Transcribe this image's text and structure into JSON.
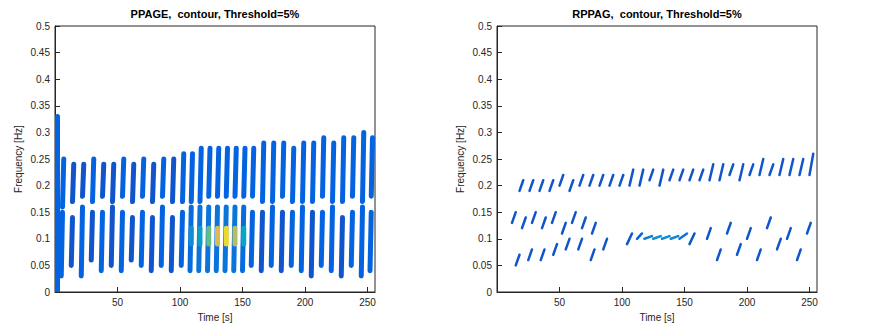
{
  "chart_data": [
    {
      "type": "contour",
      "title": "PPAGE,  contour, Threshold=5%",
      "x_label": "Time [s]",
      "y_label": "Frequency [Hz]",
      "xlim": [
        0,
        256
      ],
      "xticks": [
        50,
        100,
        150,
        200,
        250
      ],
      "ylim": [
        0,
        0.5
      ],
      "yticks": [
        0,
        0.05,
        0.1,
        0.15,
        0.2,
        0.25,
        0.3,
        0.35,
        0.4,
        0.45,
        0.5
      ],
      "zlim": [
        0,
        1
      ],
      "segments": [
        [
          2,
          0.0,
          2,
          0.33,
          0.2
        ],
        [
          6,
          0.16,
          7,
          0.25,
          0.2
        ],
        [
          14,
          0.17,
          15,
          0.24,
          0.15
        ],
        [
          22,
          0.18,
          23,
          0.24,
          0.15
        ],
        [
          30,
          0.17,
          31,
          0.25,
          0.2
        ],
        [
          38,
          0.18,
          39,
          0.24,
          0.15
        ],
        [
          46,
          0.17,
          47,
          0.24,
          0.15
        ],
        [
          54,
          0.18,
          55,
          0.25,
          0.2
        ],
        [
          62,
          0.17,
          63,
          0.24,
          0.15
        ],
        [
          70,
          0.18,
          71,
          0.25,
          0.2
        ],
        [
          78,
          0.17,
          79,
          0.24,
          0.15
        ],
        [
          86,
          0.18,
          87,
          0.25,
          0.2
        ],
        [
          94,
          0.17,
          95,
          0.25,
          0.15
        ],
        [
          102,
          0.17,
          103,
          0.26,
          0.2
        ],
        [
          109,
          0.17,
          110,
          0.26,
          0.2
        ],
        [
          116,
          0.17,
          117,
          0.27,
          0.2
        ],
        [
          123,
          0.18,
          124,
          0.27,
          0.2
        ],
        [
          130,
          0.18,
          131,
          0.27,
          0.2
        ],
        [
          137,
          0.18,
          138,
          0.27,
          0.2
        ],
        [
          144,
          0.18,
          145,
          0.27,
          0.2
        ],
        [
          151,
          0.18,
          152,
          0.27,
          0.2
        ],
        [
          158,
          0.18,
          159,
          0.27,
          0.2
        ],
        [
          166,
          0.17,
          167,
          0.28,
          0.2
        ],
        [
          174,
          0.17,
          175,
          0.28,
          0.2
        ],
        [
          182,
          0.18,
          183,
          0.28,
          0.2
        ],
        [
          190,
          0.17,
          191,
          0.27,
          0.2
        ],
        [
          198,
          0.17,
          199,
          0.28,
          0.2
        ],
        [
          206,
          0.17,
          207,
          0.28,
          0.2
        ],
        [
          214,
          0.18,
          215,
          0.29,
          0.2
        ],
        [
          222,
          0.17,
          223,
          0.28,
          0.2
        ],
        [
          230,
          0.17,
          231,
          0.29,
          0.2
        ],
        [
          238,
          0.18,
          239,
          0.29,
          0.2
        ],
        [
          246,
          0.17,
          247,
          0.3,
          0.2
        ],
        [
          253,
          0.18,
          254,
          0.29,
          0.2
        ],
        [
          5,
          0.03,
          6,
          0.15,
          0.2
        ],
        [
          13,
          0.05,
          14,
          0.14,
          0.15
        ],
        [
          21,
          0.03,
          22,
          0.16,
          0.2
        ],
        [
          29,
          0.06,
          30,
          0.15,
          0.15
        ],
        [
          37,
          0.04,
          38,
          0.15,
          0.2
        ],
        [
          45,
          0.05,
          46,
          0.16,
          0.15
        ],
        [
          53,
          0.04,
          54,
          0.15,
          0.2
        ],
        [
          61,
          0.06,
          62,
          0.14,
          0.15
        ],
        [
          69,
          0.05,
          70,
          0.15,
          0.2
        ],
        [
          77,
          0.04,
          78,
          0.14,
          0.15
        ],
        [
          85,
          0.05,
          86,
          0.16,
          0.2
        ],
        [
          93,
          0.04,
          94,
          0.14,
          0.15
        ],
        [
          101,
          0.05,
          102,
          0.15,
          0.2
        ],
        [
          108,
          0.04,
          109,
          0.16,
          0.25
        ],
        [
          115,
          0.04,
          116,
          0.16,
          0.3
        ],
        [
          122,
          0.04,
          123,
          0.16,
          0.3
        ],
        [
          129,
          0.04,
          130,
          0.16,
          0.3
        ],
        [
          136,
          0.04,
          137,
          0.16,
          0.3
        ],
        [
          143,
          0.04,
          144,
          0.16,
          0.3
        ],
        [
          150,
          0.04,
          151,
          0.16,
          0.25
        ],
        [
          157,
          0.05,
          158,
          0.15,
          0.2
        ],
        [
          165,
          0.04,
          166,
          0.15,
          0.15
        ],
        [
          173,
          0.05,
          174,
          0.16,
          0.2
        ],
        [
          181,
          0.04,
          182,
          0.15,
          0.15
        ],
        [
          189,
          0.05,
          190,
          0.15,
          0.2
        ],
        [
          197,
          0.04,
          198,
          0.16,
          0.2
        ],
        [
          205,
          0.03,
          206,
          0.15,
          0.15
        ],
        [
          213,
          0.05,
          214,
          0.15,
          0.2
        ],
        [
          221,
          0.04,
          222,
          0.16,
          0.2
        ],
        [
          229,
          0.03,
          230,
          0.14,
          0.15
        ],
        [
          237,
          0.05,
          238,
          0.15,
          0.2
        ],
        [
          245,
          0.03,
          246,
          0.16,
          0.2
        ],
        [
          252,
          0.04,
          253,
          0.15,
          0.2
        ],
        [
          109,
          0.09,
          109,
          0.12,
          0.45
        ],
        [
          116,
          0.09,
          116,
          0.12,
          0.55
        ],
        [
          123,
          0.09,
          123,
          0.12,
          0.75
        ],
        [
          130,
          0.09,
          130,
          0.12,
          0.9
        ],
        [
          137,
          0.09,
          137,
          0.12,
          0.95
        ],
        [
          144,
          0.09,
          144,
          0.12,
          0.85
        ],
        [
          151,
          0.09,
          151,
          0.12,
          0.6
        ]
      ]
    },
    {
      "type": "contour",
      "title": "RPPAG,  contour, Threshold=5%",
      "x_label": "Time [s]",
      "y_label": "Frequency [Hz]",
      "xlim": [
        0,
        256
      ],
      "xticks": [
        50,
        100,
        150,
        200,
        250
      ],
      "ylim": [
        0,
        0.5
      ],
      "yticks": [
        0,
        0.05,
        0.1,
        0.15,
        0.2,
        0.25,
        0.3,
        0.35,
        0.4,
        0.45,
        0.5
      ],
      "zlim": [
        0,
        1
      ],
      "segments": [
        [
          18,
          0.19,
          21,
          0.21,
          0.15
        ],
        [
          26,
          0.19,
          29,
          0.21,
          0.15
        ],
        [
          34,
          0.19,
          37,
          0.21,
          0.15
        ],
        [
          42,
          0.19,
          45,
          0.21,
          0.15
        ],
        [
          50,
          0.2,
          53,
          0.22,
          0.15
        ],
        [
          58,
          0.19,
          61,
          0.21,
          0.15
        ],
        [
          66,
          0.2,
          69,
          0.22,
          0.15
        ],
        [
          74,
          0.2,
          77,
          0.22,
          0.15
        ],
        [
          82,
          0.2,
          85,
          0.22,
          0.15
        ],
        [
          90,
          0.2,
          93,
          0.22,
          0.15
        ],
        [
          98,
          0.2,
          101,
          0.22,
          0.15
        ],
        [
          106,
          0.2,
          109,
          0.23,
          0.15
        ],
        [
          114,
          0.2,
          117,
          0.23,
          0.15
        ],
        [
          122,
          0.21,
          125,
          0.23,
          0.15
        ],
        [
          130,
          0.2,
          133,
          0.23,
          0.15
        ],
        [
          138,
          0.21,
          141,
          0.23,
          0.15
        ],
        [
          146,
          0.21,
          149,
          0.23,
          0.15
        ],
        [
          154,
          0.21,
          157,
          0.23,
          0.15
        ],
        [
          162,
          0.21,
          165,
          0.23,
          0.15
        ],
        [
          170,
          0.21,
          173,
          0.24,
          0.15
        ],
        [
          178,
          0.21,
          181,
          0.24,
          0.15
        ],
        [
          186,
          0.22,
          189,
          0.24,
          0.15
        ],
        [
          194,
          0.21,
          197,
          0.24,
          0.15
        ],
        [
          202,
          0.22,
          205,
          0.24,
          0.15
        ],
        [
          210,
          0.22,
          213,
          0.25,
          0.15
        ],
        [
          218,
          0.22,
          221,
          0.24,
          0.15
        ],
        [
          226,
          0.22,
          229,
          0.25,
          0.15
        ],
        [
          234,
          0.22,
          237,
          0.25,
          0.15
        ],
        [
          242,
          0.22,
          245,
          0.25,
          0.15
        ],
        [
          250,
          0.22,
          253,
          0.26,
          0.15
        ],
        [
          12,
          0.13,
          15,
          0.15,
          0.15
        ],
        [
          20,
          0.12,
          23,
          0.14,
          0.15
        ],
        [
          28,
          0.13,
          31,
          0.15,
          0.15
        ],
        [
          36,
          0.12,
          39,
          0.14,
          0.15
        ],
        [
          44,
          0.13,
          47,
          0.15,
          0.15
        ],
        [
          52,
          0.11,
          55,
          0.13,
          0.15
        ],
        [
          60,
          0.13,
          63,
          0.15,
          0.15
        ],
        [
          68,
          0.12,
          71,
          0.14,
          0.15
        ],
        [
          76,
          0.11,
          79,
          0.13,
          0.15
        ],
        [
          15,
          0.05,
          18,
          0.07,
          0.15
        ],
        [
          25,
          0.06,
          28,
          0.08,
          0.15
        ],
        [
          35,
          0.06,
          38,
          0.08,
          0.15
        ],
        [
          45,
          0.07,
          48,
          0.09,
          0.15
        ],
        [
          55,
          0.08,
          58,
          0.1,
          0.15
        ],
        [
          65,
          0.08,
          68,
          0.1,
          0.15
        ],
        [
          75,
          0.06,
          78,
          0.08,
          0.15
        ],
        [
          85,
          0.08,
          88,
          0.1,
          0.15
        ],
        [
          104,
          0.09,
          108,
          0.11,
          0.15
        ],
        [
          112,
          0.1,
          116,
          0.11,
          0.2
        ],
        [
          118,
          0.1,
          124,
          0.105,
          0.35
        ],
        [
          125,
          0.1,
          131,
          0.105,
          0.45
        ],
        [
          132,
          0.1,
          138,
          0.105,
          0.45
        ],
        [
          139,
          0.1,
          145,
          0.105,
          0.4
        ],
        [
          146,
          0.1,
          152,
          0.11,
          0.3
        ],
        [
          154,
          0.09,
          158,
          0.11,
          0.15
        ],
        [
          168,
          0.1,
          171,
          0.12,
          0.15
        ],
        [
          176,
          0.06,
          179,
          0.08,
          0.15
        ],
        [
          184,
          0.11,
          187,
          0.13,
          0.15
        ],
        [
          192,
          0.07,
          195,
          0.09,
          0.15
        ],
        [
          200,
          0.1,
          203,
          0.12,
          0.15
        ],
        [
          208,
          0.06,
          211,
          0.08,
          0.15
        ],
        [
          216,
          0.12,
          219,
          0.14,
          0.15
        ],
        [
          224,
          0.08,
          227,
          0.1,
          0.15
        ],
        [
          232,
          0.1,
          235,
          0.12,
          0.15
        ],
        [
          240,
          0.06,
          243,
          0.08,
          0.15
        ],
        [
          248,
          0.11,
          251,
          0.13,
          0.15
        ]
      ]
    }
  ]
}
